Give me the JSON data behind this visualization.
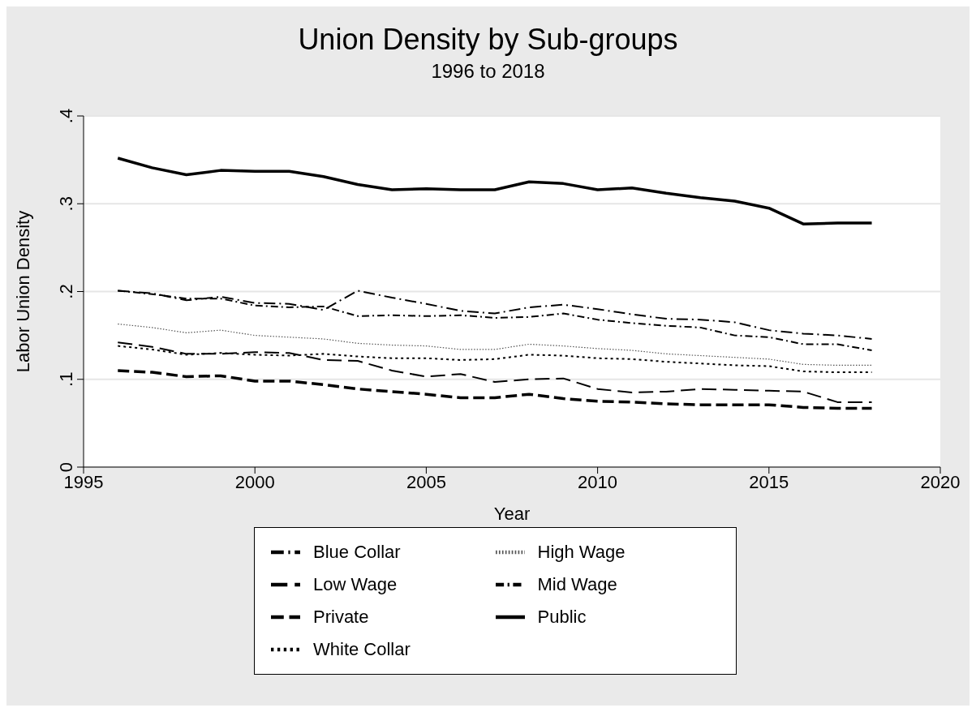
{
  "chart_data": {
    "type": "line",
    "title": "Union Density by Sub-groups",
    "subtitle": "1996 to 2018",
    "xlabel": "Year",
    "ylabel": "Labor Union Density",
    "x": [
      1996,
      1997,
      1998,
      1999,
      2000,
      2001,
      2002,
      2003,
      2004,
      2005,
      2006,
      2007,
      2008,
      2009,
      2010,
      2011,
      2012,
      2013,
      2014,
      2015,
      2016,
      2017,
      2018
    ],
    "series": [
      {
        "name": "Public",
        "color": "#000000",
        "line_style": "solid",
        "values": [
          0.352,
          0.341,
          0.333,
          0.338,
          0.337,
          0.337,
          0.331,
          0.322,
          0.316,
          0.317,
          0.316,
          0.316,
          0.325,
          0.323,
          0.316,
          0.318,
          0.312,
          0.307,
          0.303,
          0.295,
          0.277,
          0.278,
          0.278
        ]
      },
      {
        "name": "Private",
        "color": "#000000",
        "line_style": "dashed",
        "values": [
          0.11,
          0.108,
          0.103,
          0.104,
          0.098,
          0.098,
          0.094,
          0.089,
          0.086,
          0.083,
          0.079,
          0.079,
          0.083,
          0.078,
          0.075,
          0.074,
          0.072,
          0.071,
          0.071,
          0.071,
          0.068,
          0.067,
          0.067
        ]
      },
      {
        "name": "White Collar",
        "color": "#000000",
        "line_style": "dotted",
        "values": [
          0.138,
          0.134,
          0.128,
          0.13,
          0.128,
          0.127,
          0.129,
          0.126,
          0.124,
          0.124,
          0.122,
          0.123,
          0.128,
          0.127,
          0.124,
          0.123,
          0.12,
          0.118,
          0.116,
          0.115,
          0.109,
          0.108,
          0.108
        ]
      },
      {
        "name": "Blue Collar",
        "color": "#000000",
        "line_style": "longdashdot",
        "values": [
          0.201,
          0.198,
          0.19,
          0.194,
          0.187,
          0.186,
          0.179,
          0.201,
          0.193,
          0.186,
          0.178,
          0.175,
          0.182,
          0.185,
          0.18,
          0.174,
          0.169,
          0.168,
          0.165,
          0.156,
          0.152,
          0.15,
          0.146
        ]
      },
      {
        "name": "Low Wage",
        "color": "#000000",
        "line_style": "longdash",
        "values": [
          0.142,
          0.137,
          0.129,
          0.129,
          0.131,
          0.13,
          0.122,
          0.121,
          0.11,
          0.103,
          0.106,
          0.097,
          0.1,
          0.101,
          0.089,
          0.085,
          0.086,
          0.089,
          0.088,
          0.087,
          0.086,
          0.074,
          0.074
        ]
      },
      {
        "name": "Mid Wage",
        "color": "#000000",
        "line_style": "dashdot",
        "values": [
          0.201,
          0.197,
          0.192,
          0.192,
          0.184,
          0.182,
          0.183,
          0.172,
          0.173,
          0.172,
          0.173,
          0.17,
          0.171,
          0.175,
          0.168,
          0.164,
          0.161,
          0.159,
          0.15,
          0.148,
          0.14,
          0.14,
          0.133
        ]
      },
      {
        "name": "High Wage",
        "color": "#555555",
        "line_style": "finedotted",
        "values": [
          0.163,
          0.159,
          0.153,
          0.156,
          0.15,
          0.148,
          0.146,
          0.141,
          0.139,
          0.138,
          0.134,
          0.134,
          0.14,
          0.138,
          0.135,
          0.133,
          0.129,
          0.127,
          0.125,
          0.123,
          0.117,
          0.116,
          0.116
        ]
      }
    ],
    "xlim": [
      1995,
      2020
    ],
    "xticks": [
      1995,
      2000,
      2005,
      2010,
      2015,
      2020
    ],
    "ylim": [
      0,
      0.4
    ],
    "yticks": [
      0,
      {
        "value": 0.1,
        "label": ".1"
      },
      {
        "value": 0.2,
        "label": ".2"
      },
      {
        "value": 0.3,
        "label": ".3"
      },
      {
        "value": 0.4,
        "label": ".4"
      }
    ],
    "grid": "y",
    "legend": "bottom",
    "marker": "none"
  }
}
